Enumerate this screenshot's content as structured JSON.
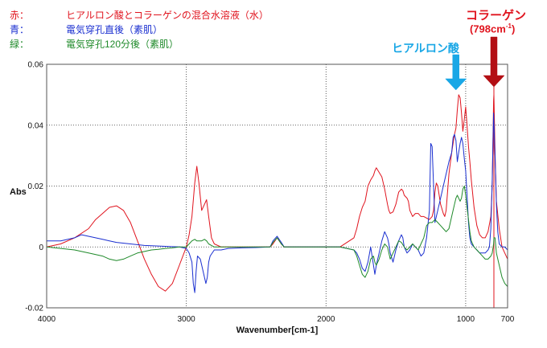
{
  "legend": [
    {
      "key": "赤：",
      "text": "ヒアルロン酸とコラーゲンの混合水溶液（水）",
      "color": "#e0141e"
    },
    {
      "key": "青：",
      "text": "電気穿孔直後（素肌）",
      "color": "#1a2fd0"
    },
    {
      "key": "緑：",
      "text": "電気穿孔120分後（素肌）",
      "color": "#1f8a2a"
    }
  ],
  "annotations": {
    "collagen_label": "コラーゲン",
    "collagen_wavenumber": "(798cm",
    "collagen_unit_sup": "-1",
    "collagen_unit_close": ")",
    "collagen_color": "#e0141e",
    "collagen_arrow_color": "#b30f14",
    "hyaluronic_label": "ヒアルロン酸",
    "hyaluronic_color": "#19a7e6"
  },
  "chart_data": {
    "type": "line",
    "xlabel": "Wavenumber[cm-1]",
    "ylabel": "Abs",
    "xlim": [
      4000,
      700
    ],
    "ylim": [
      -0.02,
      0.06
    ],
    "x_ticks": [
      4000,
      3000,
      2000,
      1000,
      700
    ],
    "y_ticks": [
      -0.02,
      0,
      0.02,
      0.04,
      0.06
    ],
    "y_tick_labels": [
      "-0.02",
      "0",
      "0.02",
      "0.04",
      "0.06"
    ],
    "grid": true,
    "reference_lines": [
      {
        "x": 798,
        "color": "#e0141e"
      }
    ],
    "series": [
      {
        "color": "#e0141e",
        "x": [
          4000,
          3900,
          3800,
          3700,
          3650,
          3600,
          3550,
          3500,
          3450,
          3400,
          3350,
          3300,
          3250,
          3200,
          3150,
          3100,
          3050,
          3000,
          2980,
          2960,
          2940,
          2925,
          2910,
          2890,
          2870,
          2855,
          2840,
          2820,
          2800,
          2750,
          2700,
          2500,
          2400,
          2380,
          2350,
          2320,
          2300,
          2200,
          2000,
          1900,
          1800,
          1780,
          1760,
          1740,
          1720,
          1700,
          1680,
          1660,
          1650,
          1640,
          1620,
          1600,
          1580,
          1560,
          1550,
          1540,
          1520,
          1500,
          1480,
          1460,
          1450,
          1440,
          1420,
          1410,
          1400,
          1380,
          1360,
          1340,
          1320,
          1300,
          1280,
          1260,
          1240,
          1230,
          1220,
          1210,
          1200,
          1180,
          1160,
          1150,
          1140,
          1120,
          1100,
          1080,
          1070,
          1060,
          1050,
          1040,
          1030,
          1020,
          1010,
          1000,
          990,
          980,
          970,
          960,
          940,
          920,
          900,
          880,
          860,
          840,
          820,
          810,
          800,
          798,
          790,
          780,
          760,
          740,
          720,
          700
        ],
        "y": [
          0.0,
          0.001,
          0.003,
          0.006,
          0.009,
          0.011,
          0.013,
          0.0135,
          0.012,
          0.008,
          0.002,
          -0.004,
          -0.009,
          -0.013,
          -0.0145,
          -0.012,
          -0.006,
          0.0,
          0.004,
          0.01,
          0.021,
          0.0265,
          0.021,
          0.012,
          0.014,
          0.0155,
          0.01,
          0.003,
          0.001,
          0.0,
          0.0,
          0.0,
          0.0,
          0.001,
          0.003,
          0.001,
          0.0,
          0.0,
          0.0,
          0.0,
          0.003,
          0.006,
          0.01,
          0.013,
          0.015,
          0.02,
          0.022,
          0.0235,
          0.025,
          0.026,
          0.0245,
          0.023,
          0.019,
          0.014,
          0.012,
          0.011,
          0.0115,
          0.014,
          0.018,
          0.019,
          0.0185,
          0.017,
          0.016,
          0.015,
          0.012,
          0.01,
          0.011,
          0.011,
          0.01,
          0.01,
          0.0095,
          0.009,
          0.01,
          0.012,
          0.018,
          0.021,
          0.02,
          0.014,
          0.011,
          0.01,
          0.012,
          0.024,
          0.031,
          0.037,
          0.039,
          0.045,
          0.05,
          0.049,
          0.044,
          0.038,
          0.042,
          0.046,
          0.04,
          0.033,
          0.028,
          0.022,
          0.013,
          0.007,
          0.004,
          0.003,
          0.003,
          0.005,
          0.01,
          0.02,
          0.048,
          0.05,
          0.031,
          0.015,
          0.006,
          0.0,
          -0.002,
          -0.004
        ]
      },
      {
        "color": "#1a2fd0",
        "x": [
          4000,
          3900,
          3800,
          3750,
          3700,
          3650,
          3600,
          3550,
          3500,
          3400,
          3300,
          3200,
          3100,
          3050,
          3000,
          2980,
          2960,
          2950,
          2940,
          2930,
          2920,
          2900,
          2880,
          2860,
          2850,
          2840,
          2830,
          2800,
          2750,
          2700,
          2600,
          2500,
          2400,
          2380,
          2350,
          2320,
          2300,
          2200,
          2000,
          1900,
          1800,
          1780,
          1760,
          1740,
          1720,
          1700,
          1680,
          1660,
          1650,
          1640,
          1620,
          1600,
          1580,
          1560,
          1550,
          1540,
          1520,
          1500,
          1480,
          1460,
          1450,
          1440,
          1420,
          1400,
          1380,
          1360,
          1340,
          1320,
          1300,
          1280,
          1260,
          1250,
          1240,
          1230,
          1220,
          1200,
          1180,
          1160,
          1140,
          1120,
          1100,
          1090,
          1080,
          1070,
          1060,
          1050,
          1040,
          1030,
          1020,
          1010,
          1000,
          990,
          980,
          970,
          960,
          940,
          920,
          900,
          880,
          860,
          840,
          830,
          820,
          810,
          800,
          790,
          780,
          770,
          760,
          740,
          720,
          700
        ],
        "y": [
          0.002,
          0.002,
          0.003,
          0.004,
          0.0035,
          0.003,
          0.0025,
          0.002,
          0.0015,
          0.001,
          0.0005,
          0.0003,
          0.0001,
          0.0,
          -0.0005,
          -0.002,
          -0.005,
          -0.012,
          -0.015,
          -0.008,
          -0.003,
          -0.004,
          -0.008,
          -0.012,
          -0.01,
          -0.005,
          -0.003,
          -0.001,
          -0.001,
          -0.0005,
          -0.0003,
          -0.0002,
          0.0,
          0.002,
          0.0035,
          0.0015,
          0.0,
          0.0,
          0.0,
          0.0,
          -0.001,
          -0.002,
          -0.004,
          -0.007,
          -0.008,
          -0.005,
          0.0,
          -0.006,
          -0.009,
          -0.006,
          -0.002,
          0.002,
          0.005,
          0.003,
          0.001,
          -0.002,
          -0.005,
          -0.001,
          0.002,
          0.004,
          0.003,
          0.0,
          -0.002,
          -0.001,
          0.001,
          0.0,
          -0.001,
          -0.003,
          -0.002,
          0.003,
          0.012,
          0.034,
          0.033,
          0.02,
          0.008,
          0.012,
          0.016,
          0.02,
          0.024,
          0.028,
          0.031,
          0.036,
          0.037,
          0.035,
          0.028,
          0.031,
          0.034,
          0.036,
          0.034,
          0.029,
          0.025,
          0.017,
          0.008,
          0.003,
          0.001,
          0.0,
          -0.001,
          -0.002,
          -0.002,
          -0.002,
          -0.001,
          0.0,
          0.006,
          0.022,
          0.044,
          0.03,
          0.014,
          0.005,
          0.001,
          0.0,
          0.0,
          -0.001
        ]
      },
      {
        "color": "#1f8a2a",
        "x": [
          4000,
          3900,
          3800,
          3700,
          3600,
          3550,
          3500,
          3450,
          3400,
          3350,
          3300,
          3250,
          3200,
          3150,
          3100,
          3050,
          3000,
          2980,
          2960,
          2940,
          2925,
          2910,
          2890,
          2870,
          2855,
          2840,
          2820,
          2800,
          2750,
          2700,
          2500,
          2400,
          2380,
          2350,
          2320,
          2300,
          2200,
          2000,
          1900,
          1800,
          1780,
          1760,
          1740,
          1720,
          1700,
          1680,
          1660,
          1650,
          1640,
          1620,
          1600,
          1580,
          1560,
          1550,
          1540,
          1520,
          1500,
          1480,
          1460,
          1440,
          1420,
          1400,
          1380,
          1360,
          1340,
          1320,
          1300,
          1280,
          1260,
          1240,
          1220,
          1200,
          1180,
          1160,
          1140,
          1120,
          1100,
          1080,
          1070,
          1060,
          1050,
          1040,
          1030,
          1020,
          1010,
          1000,
          990,
          980,
          970,
          960,
          940,
          920,
          900,
          880,
          860,
          840,
          820,
          810,
          800,
          798,
          790,
          780,
          760,
          740,
          720,
          700
        ],
        "y": [
          0.0,
          -0.0005,
          -0.001,
          -0.002,
          -0.003,
          -0.004,
          -0.0045,
          -0.004,
          -0.003,
          -0.002,
          -0.0015,
          -0.001,
          -0.0008,
          -0.0005,
          -0.0003,
          0.0,
          0.0,
          0.001,
          0.002,
          0.0025,
          0.002,
          0.002,
          0.002,
          0.0025,
          0.002,
          0.001,
          0.0005,
          0.0,
          0.0,
          0.0,
          0.0,
          0.0,
          0.0015,
          0.003,
          0.001,
          0.0,
          0.0,
          0.0,
          0.0,
          -0.001,
          -0.003,
          -0.006,
          -0.009,
          -0.01,
          -0.008,
          -0.004,
          -0.003,
          -0.005,
          -0.006,
          -0.004,
          -0.001,
          0.001,
          0.0,
          -0.002,
          -0.004,
          -0.002,
          0.0,
          0.002,
          0.0015,
          0.0,
          -0.001,
          0.0,
          0.001,
          0.0,
          -0.001,
          0.001,
          0.003,
          0.007,
          0.008,
          0.008,
          0.009,
          0.008,
          0.007,
          0.006,
          0.005,
          0.006,
          0.01,
          0.014,
          0.016,
          0.017,
          0.016,
          0.015,
          0.016,
          0.019,
          0.02,
          0.017,
          0.013,
          0.009,
          0.005,
          0.002,
          0.0,
          -0.001,
          -0.002,
          -0.003,
          -0.004,
          -0.004,
          -0.003,
          -0.002,
          0.001,
          0.003,
          0.003,
          -0.002,
          -0.006,
          -0.01,
          -0.012,
          -0.013
        ]
      }
    ]
  }
}
